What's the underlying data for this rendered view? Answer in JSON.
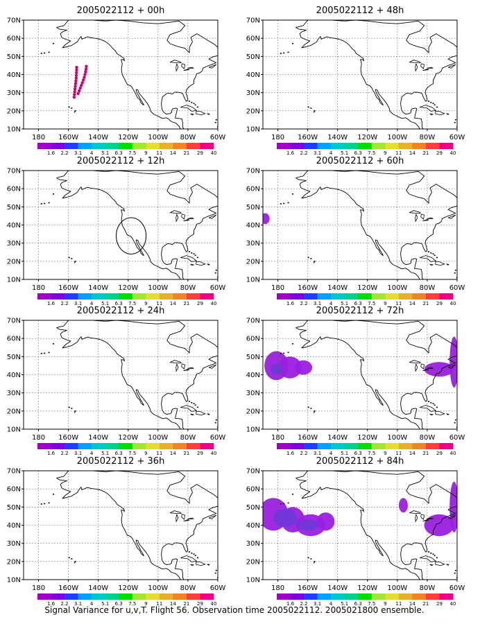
{
  "caption": "Signal Variance for u,v,T. Flight 56. Observation time 2005022112. 2005021800 ensemble.",
  "colors": {
    "colorbar": [
      "#a000c8",
      "#8200dc",
      "#1e3cff",
      "#00a0ff",
      "#00c8c8",
      "#00d28c",
      "#00dc00",
      "#a0e632",
      "#e6dc32",
      "#e6af2d",
      "#f08228",
      "#fa3c3c",
      "#f00082"
    ],
    "obs_marker": "#d2006e",
    "signal_fill_light": "#9b1fe0",
    "signal_fill_dark": "#6a3ad8",
    "circle_stroke": "#000000"
  },
  "chart_data": [
    {
      "type": "heatmap",
      "title": "2005022112 + 00h",
      "lon_range": [
        "170E",
        "60W"
      ],
      "lat_range": [
        10,
        70
      ],
      "x_ticks": [
        "180",
        "160W",
        "140W",
        "120W",
        "100W",
        "80W",
        "60W"
      ],
      "y_ticks": [
        "10N",
        "20N",
        "30N",
        "40N",
        "50N",
        "60N",
        "70N"
      ],
      "grid": true,
      "colorbar_levels": [
        "1.6",
        "2.2",
        "3.1",
        "4",
        "5.1",
        "6.3",
        "7.5",
        "9",
        "11",
        "14",
        "21",
        "29",
        "40"
      ],
      "observations": [
        [
          -154.5,
          44
        ],
        [
          -154.5,
          42.5
        ],
        [
          -154.6,
          41
        ],
        [
          -154.7,
          39.5
        ],
        [
          -154.8,
          38
        ],
        [
          -155,
          36.5
        ],
        [
          -155.2,
          35
        ],
        [
          -155.4,
          33.5
        ],
        [
          -155.6,
          32
        ],
        [
          -155.8,
          30.5
        ],
        [
          -156,
          29
        ],
        [
          -156.2,
          27.5
        ],
        [
          -148,
          44.5
        ],
        [
          -148.2,
          43
        ],
        [
          -148.5,
          41.5
        ],
        [
          -148.9,
          40
        ],
        [
          -149.4,
          38.5
        ],
        [
          -150,
          37
        ],
        [
          -150.7,
          35.5
        ],
        [
          -151.4,
          34
        ],
        [
          -152.1,
          32.5
        ],
        [
          -152.8,
          31
        ],
        [
          -153.5,
          29.5
        ]
      ],
      "signal_regions": []
    },
    {
      "type": "heatmap",
      "title": "2005022112 + 48h",
      "lon_range": [
        "170E",
        "60W"
      ],
      "lat_range": [
        10,
        70
      ],
      "x_ticks": [
        "180",
        "160W",
        "140W",
        "120W",
        "100W",
        "80W",
        "60W"
      ],
      "y_ticks": [
        "10N",
        "20N",
        "30N",
        "40N",
        "50N",
        "60N",
        "70N"
      ],
      "grid": true,
      "colorbar_levels": [
        "1.6",
        "2.2",
        "3.1",
        "4",
        "5.1",
        "6.3",
        "7.5",
        "9",
        "11",
        "14",
        "21",
        "29",
        "40"
      ],
      "observations": [],
      "signal_regions": []
    },
    {
      "type": "heatmap",
      "title": "2005022112 + 12h",
      "lon_range": [
        "170E",
        "60W"
      ],
      "lat_range": [
        10,
        70
      ],
      "x_ticks": [
        "180",
        "160W",
        "140W",
        "120W",
        "100W",
        "80W",
        "60W"
      ],
      "y_ticks": [
        "10N",
        "20N",
        "30N",
        "40N",
        "50N",
        "60N",
        "70N"
      ],
      "grid": true,
      "colorbar_levels": [
        "1.6",
        "2.2",
        "3.1",
        "4",
        "5.1",
        "6.3",
        "7.5",
        "9",
        "11",
        "14",
        "21",
        "29",
        "40"
      ],
      "observations": [],
      "circle": {
        "center": [
          -118,
          34
        ],
        "radius_deg": 10
      },
      "signal_regions": []
    },
    {
      "type": "heatmap",
      "title": "2005022112 + 60h",
      "lon_range": [
        "170E",
        "60W"
      ],
      "lat_range": [
        10,
        70
      ],
      "x_ticks": [
        "180",
        "160W",
        "140W",
        "120W",
        "100W",
        "80W",
        "60W"
      ],
      "y_ticks": [
        "10N",
        "20N",
        "30N",
        "40N",
        "50N",
        "60N",
        "70N"
      ],
      "grid": true,
      "colorbar_levels": [
        "1.6",
        "2.2",
        "3.1",
        "4",
        "5.1",
        "6.3",
        "7.5",
        "9",
        "11",
        "14",
        "21",
        "29",
        "40"
      ],
      "observations": [],
      "signal_regions": [
        {
          "level": "1.6",
          "ellipses": [
            [
              -188.5,
              43.5,
              3,
              3
            ]
          ]
        }
      ]
    },
    {
      "type": "heatmap",
      "title": "2005022112 + 24h",
      "lon_range": [
        "170E",
        "60W"
      ],
      "lat_range": [
        10,
        70
      ],
      "x_ticks": [
        "180",
        "160W",
        "140W",
        "120W",
        "100W",
        "80W",
        "60W"
      ],
      "y_ticks": [
        "10N",
        "20N",
        "30N",
        "40N",
        "50N",
        "60N",
        "70N"
      ],
      "grid": true,
      "colorbar_levels": [
        "1.6",
        "2.2",
        "3.1",
        "4",
        "5.1",
        "6.3",
        "7.5",
        "9",
        "11",
        "14",
        "21",
        "29",
        "40"
      ],
      "observations": [],
      "signal_regions": []
    },
    {
      "type": "heatmap",
      "title": "2005022112 + 72h",
      "lon_range": [
        "170E",
        "60W"
      ],
      "lat_range": [
        10,
        70
      ],
      "x_ticks": [
        "180",
        "160W",
        "140W",
        "120W",
        "100W",
        "80W",
        "60W"
      ],
      "y_ticks": [
        "10N",
        "20N",
        "30N",
        "40N",
        "50N",
        "60N",
        "70N"
      ],
      "grid": true,
      "colorbar_levels": [
        "1.6",
        "2.2",
        "3.1",
        "4",
        "5.1",
        "6.3",
        "7.5",
        "9",
        "11",
        "14",
        "21",
        "29",
        "40"
      ],
      "observations": [],
      "signal_regions": [
        {
          "level": "1.6",
          "ellipses": [
            [
              -181,
              45,
              8,
              8
            ],
            [
              -172,
              44,
              8,
              6
            ],
            [
              -163,
              44,
              6,
              4
            ],
            [
              -72,
              43,
              10,
              4
            ],
            [
              -62,
              47,
              3,
              14
            ]
          ]
        },
        {
          "level": "2.2",
          "ellipses": [
            [
              -181,
              43,
              4,
              3
            ]
          ]
        }
      ]
    },
    {
      "type": "heatmap",
      "title": "2005022112 + 36h",
      "lon_range": [
        "170E",
        "60W"
      ],
      "lat_range": [
        10,
        70
      ],
      "x_ticks": [
        "180",
        "160W",
        "140W",
        "120W",
        "100W",
        "80W",
        "60W"
      ],
      "y_ticks": [
        "10N",
        "20N",
        "30N",
        "40N",
        "50N",
        "60N",
        "70N"
      ],
      "grid": true,
      "colorbar_levels": [
        "1.6",
        "2.2",
        "3.1",
        "4",
        "5.1",
        "6.3",
        "7.5",
        "9",
        "11",
        "14",
        "21",
        "29",
        "40"
      ],
      "observations": [],
      "signal_regions": []
    },
    {
      "type": "heatmap",
      "title": "2005022112 + 84h",
      "lon_range": [
        "170E",
        "60W"
      ],
      "lat_range": [
        10,
        70
      ],
      "x_ticks": [
        "180",
        "160W",
        "140W",
        "120W",
        "100W",
        "80W",
        "60W"
      ],
      "y_ticks": [
        "10N",
        "20N",
        "30N",
        "40N",
        "50N",
        "60N",
        "70N"
      ],
      "grid": true,
      "colorbar_levels": [
        "1.6",
        "2.2",
        "3.1",
        "4",
        "5.1",
        "6.3",
        "7.5",
        "9",
        "11",
        "14",
        "21",
        "29",
        "40"
      ],
      "observations": [],
      "signal_regions": [
        {
          "level": "1.6",
          "ellipses": [
            [
              -183,
              46,
              10,
              9
            ],
            [
              -170,
              43,
              8,
              7
            ],
            [
              -158,
              40,
              10,
              6
            ],
            [
              -148,
              42,
              6,
              5
            ],
            [
              -96,
              51,
              3,
              4
            ],
            [
              -72,
              40,
              10,
              6
            ],
            [
              -62,
              50,
              3,
              14
            ]
          ]
        },
        {
          "level": "2.2",
          "ellipses": [
            [
              -175,
              44,
              8,
              5
            ],
            [
              -160,
              40,
              7,
              3
            ]
          ]
        }
      ]
    }
  ]
}
